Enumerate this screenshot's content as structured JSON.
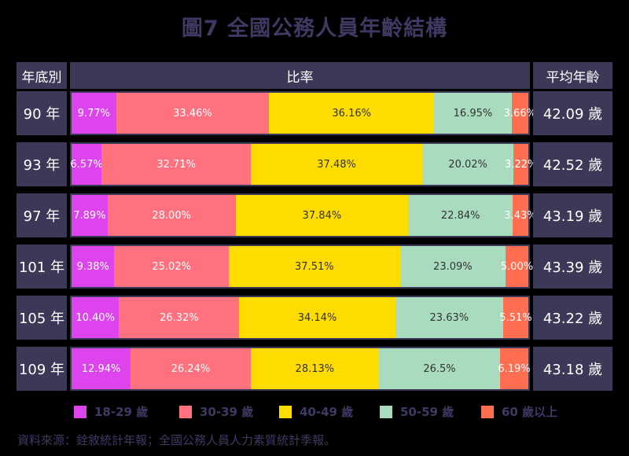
{
  "title": "圖7 全國公務人員年齡結構",
  "headers": {
    "year": "年底別",
    "ratio": "比率",
    "avg": "平均年齡"
  },
  "colors": {
    "18-29": "#dd44ee",
    "30-39": "#ff717f",
    "40-49": "#ffdc00",
    "50-59": "#a9dcbe",
    "60+": "#ff6e51"
  },
  "chart_data": {
    "type": "bar",
    "stacked": true,
    "orientation": "horizontal",
    "categories": [
      "90 年",
      "93 年",
      "97 年",
      "101 年",
      "105 年",
      "109 年"
    ],
    "series": [
      {
        "name": "18-29 歲",
        "values": [
          9.77,
          6.57,
          7.89,
          9.38,
          10.4,
          12.94
        ],
        "labels": [
          "9.77%",
          "6.57%",
          "7.89%",
          "9.38%",
          "10.40%",
          "12.94%"
        ]
      },
      {
        "name": "30-39 歲",
        "values": [
          33.46,
          32.71,
          28.0,
          25.02,
          26.32,
          26.24
        ],
        "labels": [
          "33.46%",
          "32.71%",
          "28.00%",
          "25.02%",
          "26.32%",
          "26.24%"
        ]
      },
      {
        "name": "40-49 歲",
        "values": [
          36.16,
          37.48,
          37.84,
          37.51,
          34.14,
          28.13
        ],
        "labels": [
          "36.16%",
          "37.48%",
          "37.84%",
          "37.51%",
          "34.14%",
          "28.13%"
        ]
      },
      {
        "name": "50-59 歲",
        "values": [
          16.95,
          20.02,
          22.84,
          23.09,
          23.63,
          26.5
        ],
        "labels": [
          "16.95%",
          "20.02%",
          "22.84%",
          "23.09%",
          "23.63%",
          "26.5%"
        ]
      },
      {
        "name": "60 歲以上",
        "values": [
          3.66,
          3.22,
          3.43,
          5.0,
          5.51,
          6.19
        ],
        "labels": [
          "3.66%",
          "3.22%",
          "3.43%",
          "5.00%",
          "5.51%",
          "6.19%"
        ]
      }
    ],
    "average_age": [
      "42.09 歲",
      "42.52 歲",
      "43.19 歲",
      "43.39 歲",
      "43.22 歲",
      "43.18 歲"
    ],
    "legend_position": "bottom"
  },
  "source": "資料來源：銓敘統計年報；全國公務人員人力素質統計季報。"
}
